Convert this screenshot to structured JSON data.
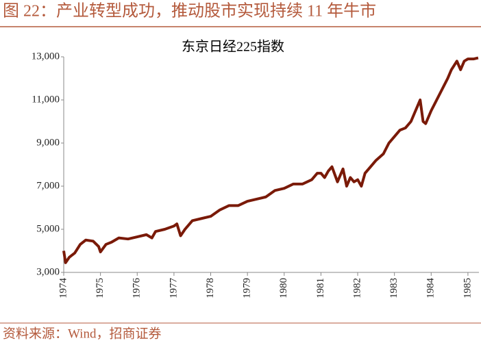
{
  "header": {
    "title": "图 22：产业转型成功，推动股市实现持续 11 年牛市"
  },
  "chart_data": {
    "type": "line",
    "title": "东京日经225指数",
    "x": [
      1974.0,
      1974.05,
      1974.15,
      1974.3,
      1974.45,
      1974.6,
      1974.8,
      1974.95,
      1975.0,
      1975.15,
      1975.3,
      1975.5,
      1975.75,
      1976.0,
      1976.25,
      1976.4,
      1976.5,
      1976.75,
      1977.0,
      1977.08,
      1977.18,
      1977.3,
      1977.5,
      1977.75,
      1978.0,
      1978.25,
      1978.5,
      1978.75,
      1979.0,
      1979.25,
      1979.5,
      1979.75,
      1980.0,
      1980.25,
      1980.5,
      1980.75,
      1980.9,
      1981.0,
      1981.1,
      1981.2,
      1981.3,
      1981.45,
      1981.6,
      1981.7,
      1981.8,
      1981.9,
      1982.0,
      1982.1,
      1982.2,
      1982.35,
      1982.5,
      1982.7,
      1982.85,
      1983.0,
      1983.15,
      1983.3,
      1983.45,
      1983.55,
      1983.65,
      1983.7,
      1983.78,
      1983.85,
      1984.0,
      1984.15,
      1984.3,
      1984.45,
      1984.55,
      1984.7,
      1984.8,
      1984.9,
      1985.0,
      1985.15,
      1985.28
    ],
    "series": [
      {
        "name": "东京日经225指数",
        "color": "#7a1a08",
        "values": [
          4000,
          3450,
          3700,
          3900,
          4300,
          4500,
          4450,
          4200,
          3950,
          4300,
          4400,
          4600,
          4550,
          4650,
          4750,
          4600,
          4900,
          5000,
          5150,
          5250,
          4700,
          5000,
          5400,
          5500,
          5600,
          5900,
          6100,
          6100,
          6300,
          6400,
          6500,
          6800,
          6900,
          7100,
          7100,
          7300,
          7600,
          7600,
          7400,
          7700,
          7900,
          7200,
          7800,
          7000,
          7400,
          7200,
          7300,
          7000,
          7600,
          7900,
          8200,
          8500,
          9000,
          9300,
          9600,
          9700,
          10000,
          10400,
          10800,
          11000,
          10000,
          9900,
          10500,
          11000,
          11500,
          12000,
          12400,
          12800,
          12400,
          12800,
          12900,
          12900,
          12950
        ]
      }
    ],
    "xlim": [
      1974,
      1985.3
    ],
    "xticks": [
      1974,
      1975,
      1976,
      1977,
      1978,
      1979,
      1980,
      1981,
      1982,
      1983,
      1984,
      1985
    ],
    "ylim": [
      3000,
      13000
    ],
    "yticks": [
      {
        "value": 3000,
        "label": "3,000"
      },
      {
        "value": 5000,
        "label": "5,000"
      },
      {
        "value": 7000,
        "label": "7,000"
      },
      {
        "value": 9000,
        "label": "9,000"
      },
      {
        "value": 11000,
        "label": "11,000"
      },
      {
        "value": 13000,
        "label": "13,000"
      }
    ],
    "grid": false
  },
  "footer": {
    "source": "资料来源：Wind，招商证券"
  }
}
